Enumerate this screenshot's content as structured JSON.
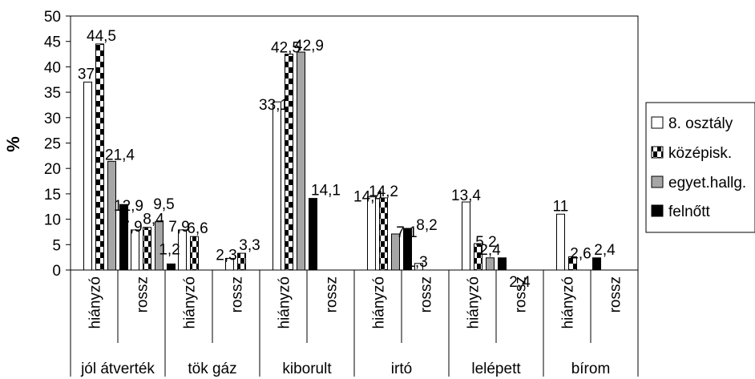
{
  "chart_data": {
    "type": "bar",
    "title": "",
    "ylabel": "%",
    "xlabel": "",
    "ylim": [
      0,
      50
    ],
    "yticks": [
      "0",
      "5",
      "10",
      "15",
      "20",
      "25",
      "30",
      "35",
      "40",
      "45",
      "50"
    ],
    "grid": false,
    "legend_position": "right",
    "groups": [
      {
        "label": "jól átverték",
        "subcategories": [
          "hiányzó",
          "rossz"
        ]
      },
      {
        "label": "tök gáz",
        "subcategories": [
          "hiányzó",
          "rossz"
        ]
      },
      {
        "label": "kiborult",
        "subcategories": [
          "hiányzó",
          "rossz"
        ]
      },
      {
        "label": "irtó",
        "subcategories": [
          "hiányzó",
          "rossz"
        ]
      },
      {
        "label": "lelépett",
        "subcategories": [
          "hiányzó",
          "rossz"
        ]
      },
      {
        "label": "bírom",
        "subcategories": [
          "hiányzó",
          "rossz"
        ]
      }
    ],
    "series": [
      {
        "name": "8. osztály",
        "pattern": "white",
        "values": [
          37,
          7.9,
          7.9,
          2.3,
          33.1,
          null,
          14.4,
          1.3,
          13.4,
          null,
          11,
          null
        ],
        "labels": [
          "37",
          "7,9",
          "7,9",
          "2,3",
          "33,1",
          "",
          "14,4",
          "1,3",
          "13,4",
          "",
          "11",
          ""
        ]
      },
      {
        "name": "középisk.",
        "pattern": "checker",
        "values": [
          44.5,
          8.4,
          6.6,
          3.3,
          42.5,
          null,
          14.2,
          null,
          5.2,
          null,
          2.6,
          null
        ],
        "labels": [
          "44,5",
          "8,4",
          "6,6",
          "3,3",
          "42,5",
          "",
          "14,2",
          "",
          "5,2",
          "",
          "2,6",
          ""
        ]
      },
      {
        "name": "egyet.hallg.",
        "pattern": "gray",
        "values": [
          21.4,
          9.5,
          null,
          null,
          42.9,
          null,
          7.1,
          null,
          2.4,
          null,
          null,
          null
        ],
        "labels": [
          "21,4",
          "9,5",
          "",
          "",
          "42,9",
          "",
          "7,1",
          "",
          "2,4",
          "",
          "",
          ""
        ]
      },
      {
        "name": "felnőtt",
        "pattern": "black",
        "values": [
          12.9,
          1.2,
          null,
          null,
          14.1,
          null,
          8.2,
          null,
          2.4,
          null,
          2.4,
          null
        ],
        "labels": [
          "12,9",
          "1,2",
          "",
          "",
          "14,1",
          "",
          "8,2",
          "",
          "2,4",
          "",
          "2,4",
          ""
        ]
      }
    ]
  }
}
